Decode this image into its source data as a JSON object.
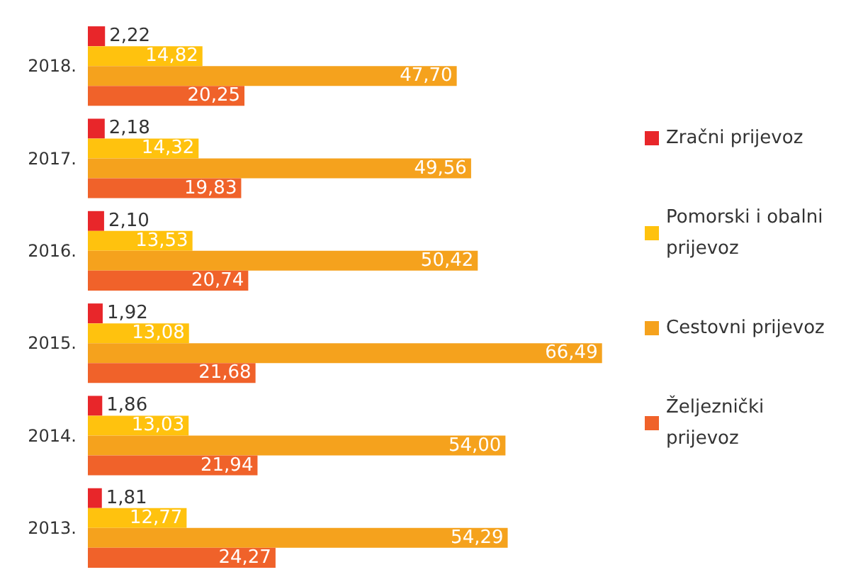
{
  "chart_data": {
    "type": "bar",
    "orientation": "horizontal",
    "categories": [
      "2018.",
      "2017.",
      "2016.",
      "2015.",
      "2014.",
      "2013."
    ],
    "series": [
      {
        "name": "Zračni prijevoz",
        "color": "#e8262a",
        "values": [
          2.22,
          2.18,
          2.1,
          1.92,
          1.86,
          1.81
        ],
        "value_labels": [
          "2,22",
          "2,18",
          "2,10",
          "1,92",
          "1,86",
          "1,81"
        ]
      },
      {
        "name": "Pomorski i obalni prijevoz",
        "color": "#ffc20e",
        "values": [
          14.82,
          14.32,
          13.53,
          13.08,
          13.03,
          12.77
        ],
        "value_labels": [
          "14,82",
          "14,32",
          "13,53",
          "13,08",
          "13,03",
          "12,77"
        ]
      },
      {
        "name": "Cestovni prijevoz",
        "color": "#f5a21d",
        "values": [
          47.7,
          49.56,
          50.42,
          66.49,
          54.0,
          54.29
        ],
        "value_labels": [
          "47,70",
          "49,56",
          "50,42",
          "66,49",
          "54,00",
          "54,29"
        ]
      },
      {
        "name": "Željeznički prijevoz",
        "color": "#f0622a",
        "values": [
          20.25,
          19.83,
          20.74,
          21.68,
          21.94,
          24.27
        ],
        "value_labels": [
          "20,25",
          "19,83",
          "20,74",
          "21,68",
          "21,94",
          "24,27"
        ]
      }
    ],
    "legend": "right"
  }
}
